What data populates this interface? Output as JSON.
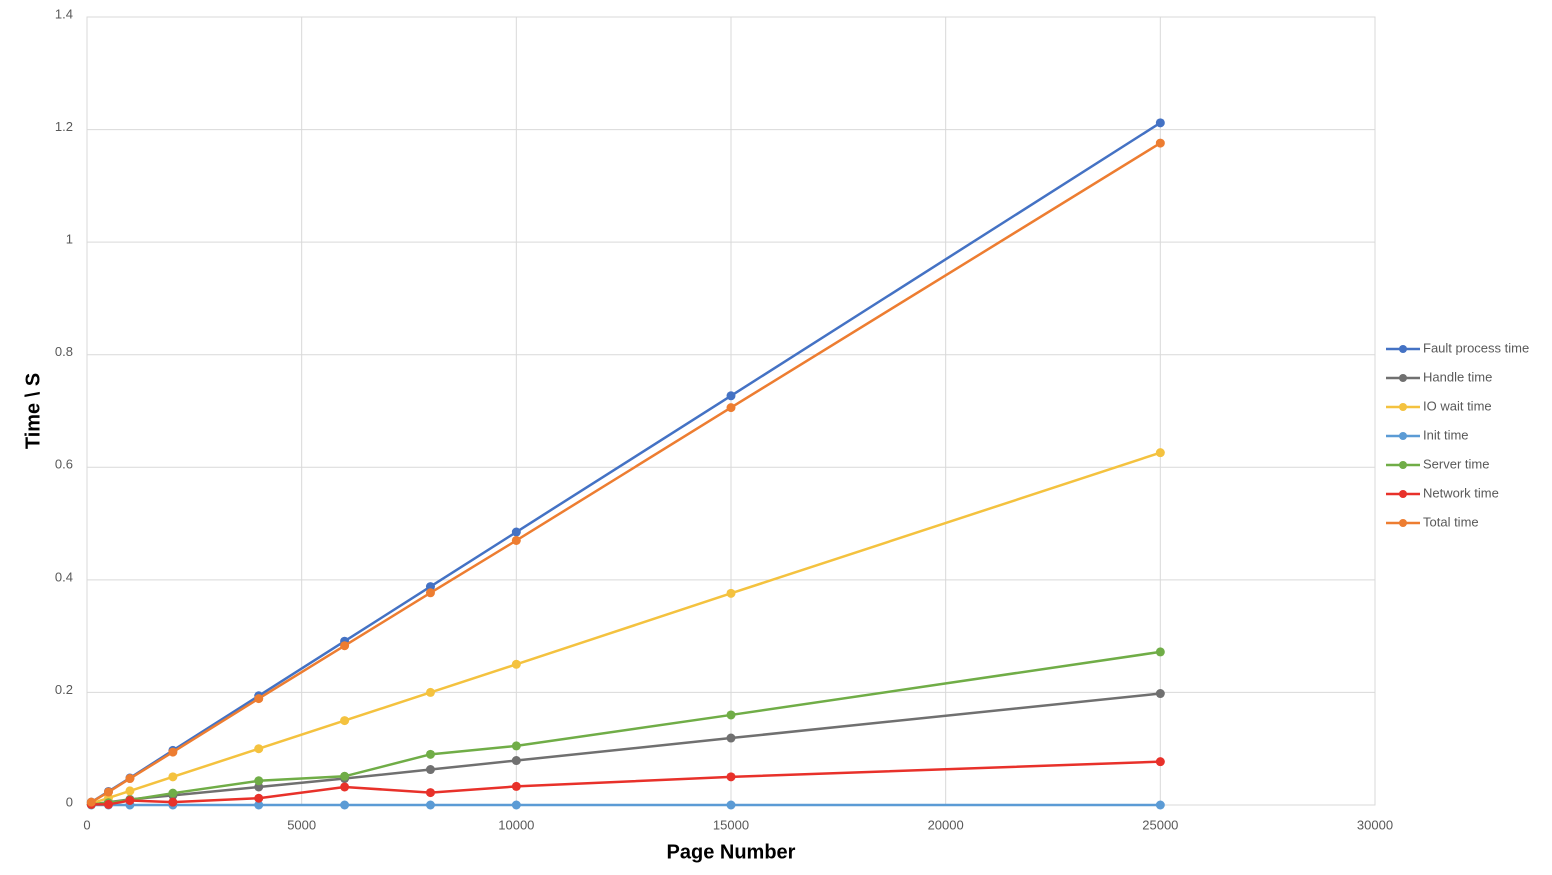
{
  "chart_data": {
    "type": "line",
    "x_label": "Page Number",
    "y_label": "Time \\ S",
    "x": [
      100,
      500,
      1000,
      2000,
      4000,
      6000,
      8000,
      10000,
      15000,
      25000
    ],
    "series": [
      {
        "name": "Fault process time",
        "color": "#4472c4",
        "values": [
          0.005,
          0.024,
          0.048,
          0.097,
          0.194,
          0.291,
          0.388,
          0.485,
          0.727,
          1.212
        ]
      },
      {
        "name": "Handle time",
        "color": "#707070",
        "values": [
          0.001,
          0.005,
          0.01,
          0.017,
          0.032,
          0.047,
          0.063,
          0.079,
          0.119,
          0.198
        ]
      },
      {
        "name": "IO wait time",
        "color": "#f4c23f",
        "values": [
          0.0025,
          0.0125,
          0.025,
          0.05,
          0.1,
          0.15,
          0.2,
          0.25,
          0.376,
          0.626
        ]
      },
      {
        "name": "Init time",
        "color": "#5b9bd5",
        "values": [
          0,
          0,
          0,
          0,
          0,
          0,
          0,
          0,
          0,
          0
        ]
      },
      {
        "name": "Server time",
        "color": "#70ad47",
        "values": [
          0.001,
          0.004,
          0.009,
          0.021,
          0.043,
          0.051,
          0.09,
          0.105,
          0.16,
          0.272
        ]
      },
      {
        "name": "Network time",
        "color": "#e8312a",
        "values": [
          0.001,
          0.001,
          0.008,
          0.005,
          0.012,
          0.032,
          0.022,
          0.033,
          0.05,
          0.077
        ]
      },
      {
        "name": "Total time",
        "color": "#ed7d31",
        "values": [
          0.005,
          0.023,
          0.047,
          0.094,
          0.189,
          0.283,
          0.377,
          0.47,
          0.706,
          1.176
        ]
      }
    ],
    "xlim": [
      0,
      30000
    ],
    "xticks": [
      0,
      5000,
      10000,
      15000,
      20000,
      25000,
      30000
    ],
    "ylim": [
      0,
      1.4
    ],
    "yticks": [
      0,
      0.2,
      0.4,
      0.6,
      0.8,
      1,
      1.2,
      1.4
    ],
    "grid": true,
    "legend": "right"
  }
}
